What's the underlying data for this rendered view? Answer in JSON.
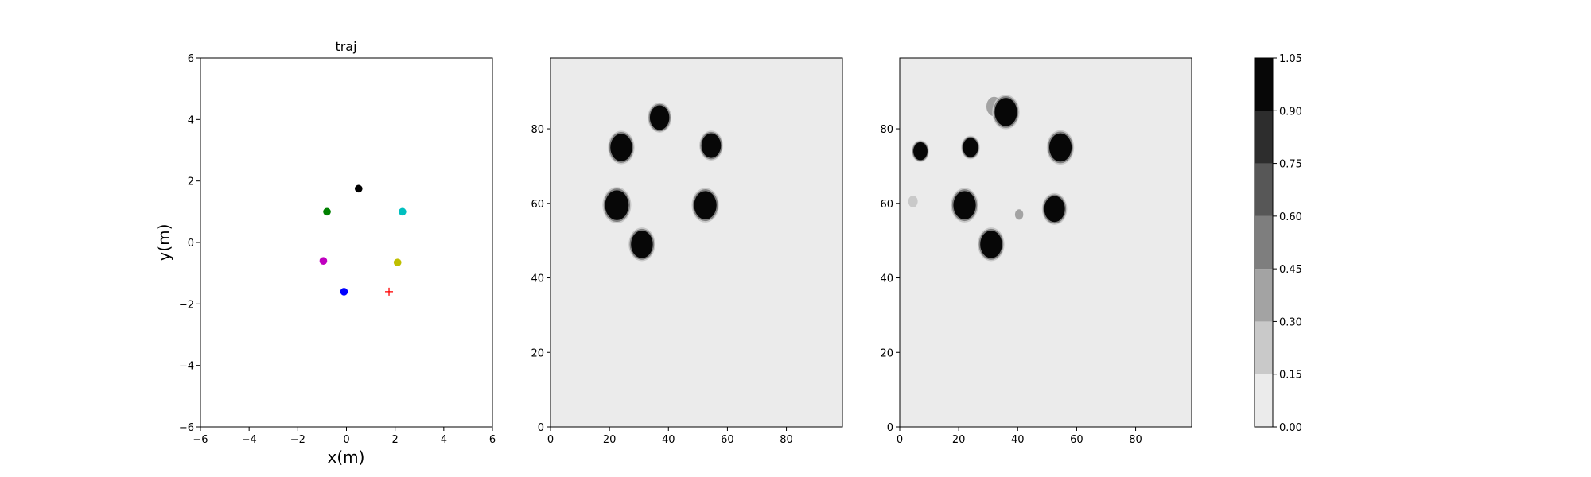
{
  "figure": {
    "title": "traj",
    "xlabel": "x(m)",
    "ylabel": "y(m)"
  },
  "chart_data": [
    {
      "type": "scatter",
      "title": "traj",
      "xlabel": "x(m)",
      "ylabel": "y(m)",
      "xlim": [
        -6,
        6
      ],
      "ylim": [
        -6,
        6
      ],
      "xticks": [
        "−6",
        "−4",
        "−2",
        "0",
        "2",
        "4",
        "6"
      ],
      "yticks": [
        "−6",
        "−4",
        "−2",
        "0",
        "2",
        "4",
        "6"
      ],
      "grid": false,
      "points": [
        {
          "x": 0.5,
          "y": 1.75,
          "color": "#000000",
          "marker": "circle"
        },
        {
          "x": -0.8,
          "y": 1.0,
          "color": "#008000",
          "marker": "circle"
        },
        {
          "x": 2.3,
          "y": 1.0,
          "color": "#00bfbf",
          "marker": "circle"
        },
        {
          "x": -0.95,
          "y": -0.6,
          "color": "#bf00bf",
          "marker": "circle"
        },
        {
          "x": 2.1,
          "y": -0.65,
          "color": "#bfbf00",
          "marker": "circle"
        },
        {
          "x": -0.1,
          "y": -1.6,
          "color": "#0000ff",
          "marker": "circle"
        },
        {
          "x": 1.75,
          "y": -1.6,
          "color": "#ff0000",
          "marker": "plus"
        }
      ]
    },
    {
      "type": "heatmap",
      "xlim": [
        0,
        99
      ],
      "ylim": [
        0,
        99
      ],
      "xticks": [
        "0",
        "20",
        "40",
        "60",
        "80"
      ],
      "yticks": [
        "0",
        "20",
        "40",
        "60",
        "80"
      ],
      "background_value": 0.05,
      "blobs": [
        {
          "x": 37,
          "y": 83,
          "r": 3.3,
          "value": 1.0
        },
        {
          "x": 24,
          "y": 75,
          "r": 3.7,
          "value": 1.0
        },
        {
          "x": 54.5,
          "y": 75.5,
          "r": 3.3,
          "value": 1.0
        },
        {
          "x": 22.5,
          "y": 59.5,
          "r": 4.0,
          "value": 1.0
        },
        {
          "x": 52.5,
          "y": 59.5,
          "r": 3.8,
          "value": 1.0
        },
        {
          "x": 31,
          "y": 49,
          "r": 3.7,
          "value": 1.0
        }
      ]
    },
    {
      "type": "heatmap",
      "xlim": [
        0,
        99
      ],
      "ylim": [
        0,
        99
      ],
      "xticks": [
        "0",
        "20",
        "40",
        "60",
        "80"
      ],
      "yticks": [
        "0",
        "20",
        "40",
        "60",
        "80"
      ],
      "background_value": 0.05,
      "blobs": [
        {
          "x": 32,
          "y": 86,
          "r": 2.6,
          "value": 0.3
        },
        {
          "x": 36,
          "y": 84.5,
          "r": 3.8,
          "value": 1.0
        },
        {
          "x": 7,
          "y": 74,
          "r": 2.4,
          "value": 1.0
        },
        {
          "x": 24,
          "y": 75,
          "r": 2.6,
          "value": 1.0
        },
        {
          "x": 54.5,
          "y": 75,
          "r": 3.8,
          "value": 1.0
        },
        {
          "x": 4.5,
          "y": 60.5,
          "r": 1.6,
          "value": 0.2
        },
        {
          "x": 22,
          "y": 59.5,
          "r": 3.8,
          "value": 1.0
        },
        {
          "x": 52.5,
          "y": 58.5,
          "r": 3.5,
          "value": 1.0
        },
        {
          "x": 40.5,
          "y": 57,
          "r": 1.4,
          "value": 0.3
        },
        {
          "x": 31,
          "y": 49,
          "r": 3.7,
          "value": 1.0
        }
      ]
    }
  ],
  "colorbar": {
    "levels": [
      0.0,
      0.15,
      0.3,
      0.45,
      0.6,
      0.75,
      0.9,
      1.05
    ],
    "tick_labels": [
      "0.00",
      "0.15",
      "0.30",
      "0.45",
      "0.60",
      "0.75",
      "0.90",
      "1.05"
    ],
    "colors": [
      "#ebebeb",
      "#c9c9c9",
      "#a3a3a3",
      "#7e7e7e",
      "#575757",
      "#2d2d2d",
      "#070707"
    ]
  }
}
